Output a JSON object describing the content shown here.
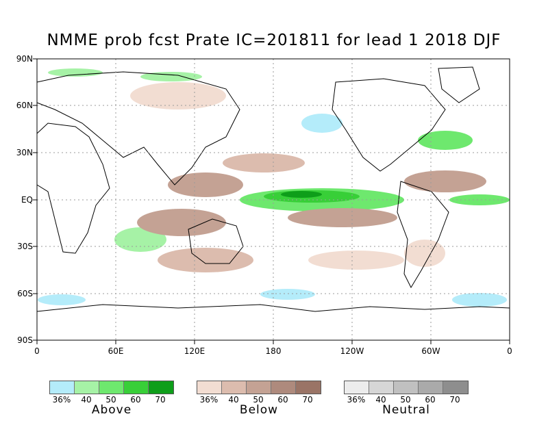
{
  "title": "NMME prob fcst Prate IC=201811 for lead 1 2018 DJF",
  "map": {
    "lat_labels": [
      "90N",
      "60N",
      "30N",
      "EQ",
      "30S",
      "60S",
      "90S"
    ],
    "lon_labels": [
      "0",
      "60E",
      "120E",
      "180",
      "120W",
      "60W",
      "0"
    ]
  },
  "legends": [
    {
      "name": "Above",
      "ticks": [
        "36%",
        "40",
        "50",
        "60",
        "70"
      ],
      "colors": [
        "#b4ecfa",
        "#a6f2a6",
        "#6ee86e",
        "#38cf38",
        "#0e9e1a"
      ]
    },
    {
      "name": "Below",
      "ticks": [
        "36%",
        "40",
        "50",
        "60",
        "70"
      ],
      "colors": [
        "#f2ddd2",
        "#dcbcae",
        "#c4a294",
        "#ae8a7d",
        "#9a7466"
      ]
    },
    {
      "name": "Neutral",
      "ticks": [
        "36%",
        "40",
        "50",
        "60",
        "70"
      ],
      "colors": [
        "#ececec",
        "#d6d6d6",
        "#c0c0c0",
        "#aaaaaa",
        "#8e8e8e"
      ]
    }
  ]
}
